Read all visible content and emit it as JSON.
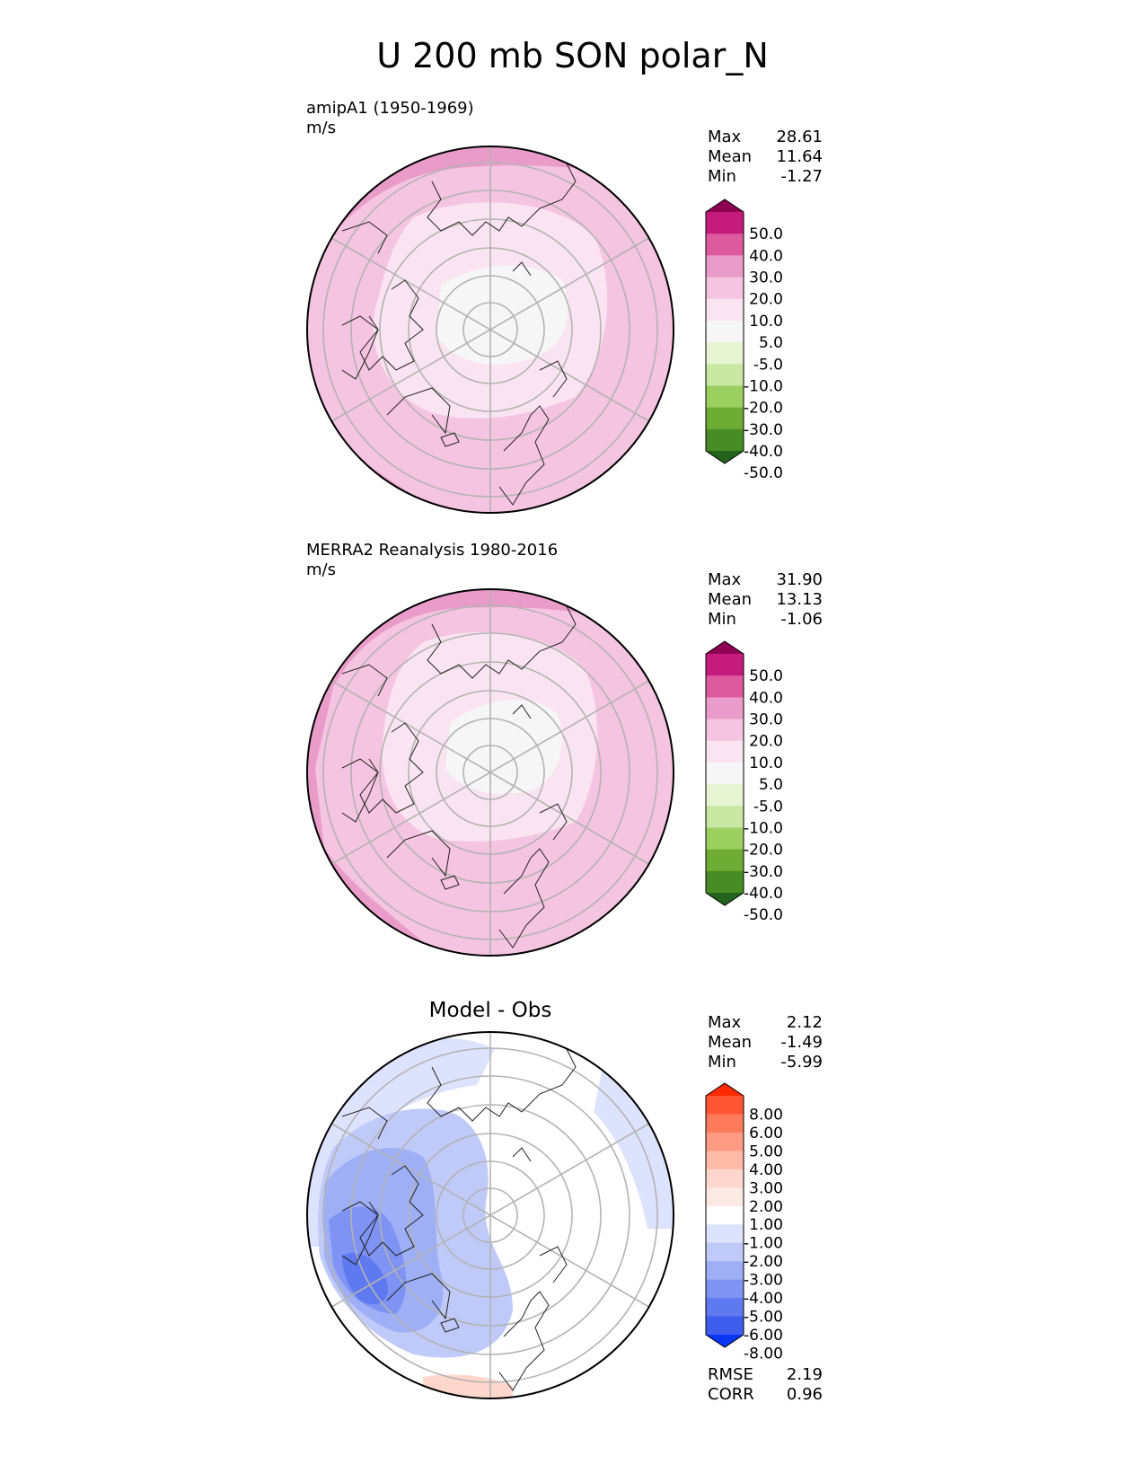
{
  "title": "U 200 mb SON polar_N",
  "panels": [
    {
      "label": "amipA1 (1950-1969)",
      "units": "m/s",
      "stats": {
        "max_label": "Max",
        "max": "28.61",
        "mean_label": "Mean",
        "mean": "11.64",
        "min_label": "Min",
        "min": "-1.27"
      }
    },
    {
      "label": "MERRA2 Reanalysis 1980-2016",
      "units": "m/s",
      "stats": {
        "max_label": "Max",
        "max": "31.90",
        "mean_label": "Mean",
        "mean": "13.13",
        "min_label": "Min",
        "min": "-1.06"
      }
    },
    {
      "label": "Model - Obs",
      "units": "",
      "stats": {
        "max_label": "Max",
        "max": "2.12",
        "mean_label": "Mean",
        "mean": "-1.49",
        "min_label": "Min",
        "min": "-5.99"
      },
      "rmse_label": "RMSE",
      "rmse": "2.19",
      "corr_label": "CORR",
      "corr": "0.96"
    }
  ],
  "colorbars": {
    "field": {
      "labels": [
        "50.0",
        "40.0",
        "30.0",
        "20.0",
        "10.0",
        "5.0",
        "-5.0",
        "-10.0",
        "-20.0",
        "-30.0",
        "-40.0",
        "-50.0"
      ],
      "colors": [
        "#8e0152",
        "#c51b7d",
        "#de5a9e",
        "#e99cc9",
        "#f4c4e0",
        "#fae4f1",
        "#f6f6f6",
        "#e6f4d2",
        "#c8e8a3",
        "#9bcf5f",
        "#6ead33",
        "#478c24",
        "#23641d"
      ]
    },
    "diff": {
      "labels": [
        "8.00",
        "6.00",
        "5.00",
        "4.00",
        "3.00",
        "2.00",
        "1.00",
        "-1.00",
        "-2.00",
        "-3.00",
        "-4.00",
        "-5.00",
        "-6.00",
        "-8.00"
      ],
      "colors": [
        "#ff2a00",
        "#ff5533",
        "#ff7a5c",
        "#ff9a85",
        "#ffbaa8",
        "#ffd7cc",
        "#fde9e4",
        "#ffffff",
        "#dde3fc",
        "#bfcaf9",
        "#9eaff6",
        "#7e93f3",
        "#5f79f0",
        "#3f5ded",
        "#0a36f5"
      ]
    }
  },
  "chart_data": [
    {
      "type": "heatmap",
      "projection": "polar_north_stereographic",
      "title": "amipA1 (1950-1969)",
      "units": "m/s",
      "levels": [
        -50,
        -40,
        -30,
        -20,
        -10,
        -5,
        5,
        10,
        20,
        30,
        40,
        50
      ],
      "max": 28.61,
      "mean": 11.64,
      "min": -1.27
    },
    {
      "type": "heatmap",
      "projection": "polar_north_stereographic",
      "title": "MERRA2 Reanalysis 1980-2016",
      "units": "m/s",
      "levels": [
        -50,
        -40,
        -30,
        -20,
        -10,
        -5,
        5,
        10,
        20,
        30,
        40,
        50
      ],
      "max": 31.9,
      "mean": 13.13,
      "min": -1.06
    },
    {
      "type": "heatmap",
      "projection": "polar_north_stereographic",
      "title": "Model - Obs",
      "levels": [
        -8,
        -6,
        -5,
        -4,
        -3,
        -2,
        -1,
        1,
        2,
        3,
        4,
        5,
        6,
        8
      ],
      "max": 2.12,
      "mean": -1.49,
      "min": -5.99,
      "rmse": 2.19,
      "corr": 0.96
    }
  ]
}
